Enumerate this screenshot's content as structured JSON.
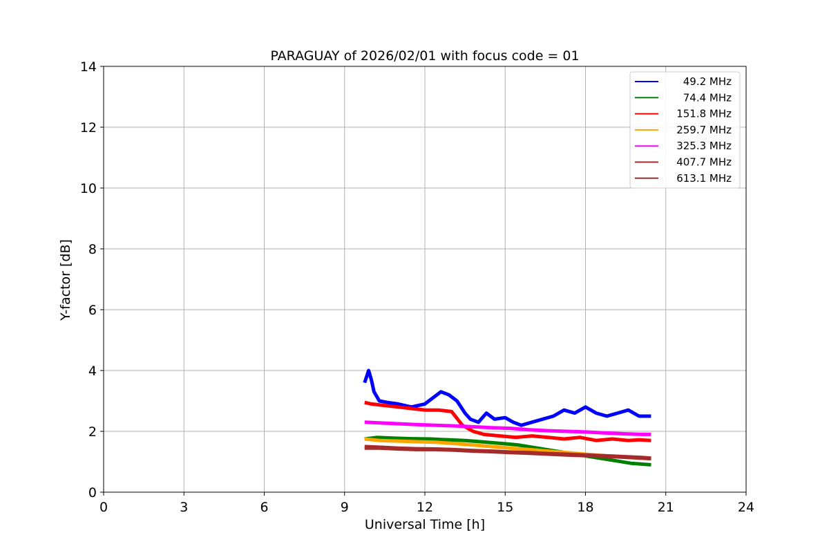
{
  "chart_data": {
    "type": "line",
    "title": "PARAGUAY of 2026/02/01 with focus code = 01",
    "xlabel": "Universal Time [h]",
    "ylabel": "Y-factor [dB]",
    "xlim": [
      0,
      24
    ],
    "ylim": [
      0,
      14
    ],
    "xticks": [
      0,
      3,
      6,
      9,
      12,
      15,
      18,
      21,
      24
    ],
    "yticks": [
      0,
      2,
      4,
      6,
      8,
      10,
      12,
      14
    ],
    "grid": true,
    "legend_position": "top-right",
    "series": [
      {
        "name": " 49.2 MHz",
        "color": "#0000ff",
        "x": [
          9.75,
          9.9,
          10.0,
          10.1,
          10.3,
          10.6,
          11.0,
          11.5,
          12.0,
          12.3,
          12.6,
          12.9,
          13.2,
          13.5,
          13.7,
          14.0,
          14.3,
          14.6,
          15.0,
          15.3,
          15.6,
          16.0,
          16.4,
          16.8,
          17.2,
          17.6,
          18.0,
          18.4,
          18.8,
          19.2,
          19.6,
          20.0,
          20.45
        ],
        "y": [
          3.6,
          4.0,
          3.7,
          3.3,
          3.0,
          2.95,
          2.9,
          2.8,
          2.9,
          3.1,
          3.3,
          3.2,
          3.0,
          2.6,
          2.4,
          2.3,
          2.6,
          2.4,
          2.45,
          2.3,
          2.2,
          2.3,
          2.4,
          2.5,
          2.7,
          2.6,
          2.8,
          2.6,
          2.5,
          2.6,
          2.7,
          2.5,
          2.5
        ]
      },
      {
        "name": " 74.4 MHz",
        "color": "#008000",
        "x": [
          9.75,
          10.2,
          10.8,
          11.5,
          12.2,
          12.9,
          13.5,
          14.2,
          14.9,
          15.5,
          16.2,
          16.9,
          17.6,
          18.3,
          19.0,
          19.7,
          20.45
        ],
        "y": [
          1.75,
          1.8,
          1.78,
          1.76,
          1.75,
          1.72,
          1.7,
          1.65,
          1.6,
          1.55,
          1.45,
          1.35,
          1.25,
          1.15,
          1.05,
          0.95,
          0.9
        ]
      },
      {
        "name": "151.8 MHz",
        "color": "#ff0000",
        "x": [
          9.75,
          10.0,
          10.5,
          11.0,
          11.5,
          12.0,
          12.5,
          13.0,
          13.4,
          13.8,
          14.2,
          14.8,
          15.4,
          16.0,
          16.6,
          17.2,
          17.8,
          18.4,
          19.0,
          19.6,
          20.0,
          20.45
        ],
        "y": [
          2.95,
          2.9,
          2.85,
          2.8,
          2.75,
          2.7,
          2.7,
          2.65,
          2.2,
          2.0,
          1.9,
          1.85,
          1.8,
          1.85,
          1.8,
          1.75,
          1.8,
          1.7,
          1.75,
          1.7,
          1.72,
          1.7
        ]
      },
      {
        "name": "259.7 MHz",
        "color": "#ffa500",
        "x": [
          9.75,
          10.3,
          11.0,
          11.7,
          12.4,
          13.1,
          13.8,
          14.5,
          15.2,
          15.9,
          16.6,
          17.3,
          18.0,
          18.7,
          19.4,
          20.1,
          20.45
        ],
        "y": [
          1.75,
          1.7,
          1.68,
          1.66,
          1.64,
          1.6,
          1.55,
          1.5,
          1.45,
          1.4,
          1.35,
          1.3,
          1.25,
          1.2,
          1.15,
          1.12,
          1.1
        ]
      },
      {
        "name": "325.3 MHz",
        "color": "#ff00ff",
        "x": [
          9.75,
          10.3,
          11.0,
          11.7,
          12.4,
          13.1,
          13.8,
          14.5,
          15.2,
          15.9,
          16.6,
          17.3,
          18.0,
          18.7,
          19.4,
          20.1,
          20.45
        ],
        "y": [
          2.3,
          2.28,
          2.25,
          2.22,
          2.2,
          2.18,
          2.15,
          2.12,
          2.1,
          2.05,
          2.02,
          2.0,
          1.98,
          1.95,
          1.92,
          1.9,
          1.9
        ]
      },
      {
        "name": "407.7 MHz",
        "color": "#a52a2a",
        "x": [
          9.75,
          10.3,
          11.0,
          11.7,
          12.4,
          13.1,
          13.8,
          14.5,
          15.2,
          15.9,
          16.6,
          17.3,
          18.0,
          18.7,
          19.4,
          20.1,
          20.45
        ],
        "y": [
          1.45,
          1.45,
          1.42,
          1.4,
          1.4,
          1.38,
          1.35,
          1.33,
          1.3,
          1.28,
          1.25,
          1.22,
          1.2,
          1.18,
          1.15,
          1.12,
          1.1
        ]
      },
      {
        "name": "613.1 MHz",
        "color": "#a52a2a",
        "x": [
          9.75,
          10.3,
          11.0,
          11.7,
          12.4,
          13.1,
          13.8,
          14.5,
          15.2,
          15.9,
          16.6,
          17.3,
          18.0,
          18.7,
          19.4,
          20.1,
          20.45
        ],
        "y": [
          1.5,
          1.48,
          1.45,
          1.43,
          1.42,
          1.4,
          1.37,
          1.35,
          1.32,
          1.3,
          1.27,
          1.25,
          1.22,
          1.2,
          1.17,
          1.14,
          1.12
        ]
      }
    ]
  }
}
